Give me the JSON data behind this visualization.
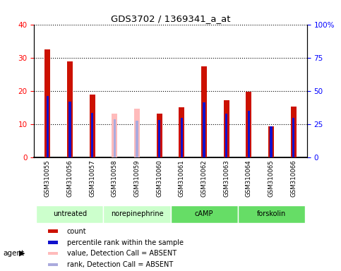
{
  "title": "GDS3702 / 1369341_a_at",
  "samples": [
    "GSM310055",
    "GSM310056",
    "GSM310057",
    "GSM310058",
    "GSM310059",
    "GSM310060",
    "GSM310061",
    "GSM310062",
    "GSM310063",
    "GSM310064",
    "GSM310065",
    "GSM310066"
  ],
  "count_values": [
    32.5,
    28.8,
    19.0,
    0,
    0,
    13.2,
    15.0,
    27.5,
    17.3,
    19.8,
    9.3,
    15.4
  ],
  "count_absent": [
    0,
    0,
    0,
    13.2,
    14.7,
    0,
    0,
    0,
    0,
    0,
    0,
    0
  ],
  "percentile_values": [
    18.5,
    16.8,
    13.5,
    0,
    0,
    11.2,
    12.0,
    16.5,
    13.2,
    14.0,
    9.3,
    12.0
  ],
  "percentile_absent": [
    0,
    0,
    0,
    11.5,
    11.0,
    0,
    0,
    0,
    0,
    0,
    0,
    0
  ],
  "detection_absent": [
    false,
    false,
    false,
    true,
    true,
    false,
    false,
    false,
    false,
    false,
    false,
    false
  ],
  "groups": [
    {
      "label": "untreated",
      "start": 0,
      "end": 3,
      "color": "#c8f5c8"
    },
    {
      "label": "norepinephrine",
      "start": 3,
      "end": 6,
      "color": "#c8f5c8"
    },
    {
      "label": "cAMP",
      "start": 6,
      "end": 9,
      "color": "#66dd66"
    },
    {
      "label": "forskolin",
      "start": 9,
      "end": 12,
      "color": "#66dd66"
    }
  ],
  "ylim_left": [
    0,
    40
  ],
  "ylim_right": [
    0,
    100
  ],
  "yticks_left": [
    0,
    10,
    20,
    30,
    40
  ],
  "yticks_right": [
    0,
    25,
    50,
    75,
    100
  ],
  "ytick_labels_right": [
    "0",
    "25",
    "50",
    "75",
    "100%"
  ],
  "color_count": "#cc1100",
  "color_count_absent": "#ffbbbb",
  "color_rank": "#1111cc",
  "color_rank_absent": "#aaaadd",
  "bar_width": 0.25,
  "bg_plot": "#ffffff",
  "bg_xtick": "#cccccc",
  "bg_groups_light": "#ccffcc",
  "bg_groups_dark": "#66dd66"
}
